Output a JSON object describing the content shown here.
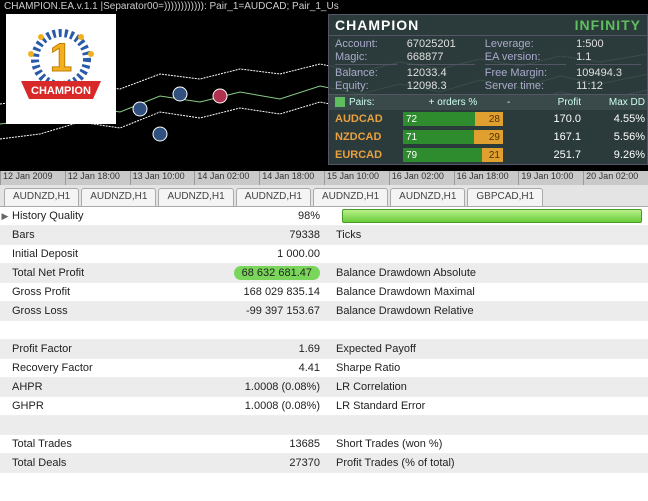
{
  "chart": {
    "title": "CHAMPION.EA.v.1.1 |Separator00=)))))))))))): Pair_1=AUDCAD; Pair_1_Us",
    "x_labels": [
      "12 Jan 2009",
      "12 Jan 18:00",
      "13 Jan 10:00",
      "14 Jan 02:00",
      "14 Jan 18:00",
      "15 Jan 10:00",
      "16 Jan 02:00",
      "16 Jan 18:00",
      "19 Jan 10:00",
      "20 Jan 02:00"
    ]
  },
  "panel": {
    "title": "CHAMPION",
    "brand": "INFINITY",
    "rows": [
      {
        "l1": "Account:",
        "v1": "67025201",
        "l2": "Leverage:",
        "v2": "1:500"
      },
      {
        "l1": "Magic:",
        "v1": "668877",
        "l2": "EA version:",
        "v2": "1.1"
      },
      {
        "l1": "Balance:",
        "v1": "12033.4",
        "l2": "Free Margin:",
        "v2": "109494.3"
      },
      {
        "l1": "Equity:",
        "v1": "12098.3",
        "l2": "Server time:",
        "v2": "11:12"
      }
    ],
    "pairs_header": {
      "c1": "Pairs:",
      "c2": "+     orders %",
      "c3": "-",
      "c4": "Profit",
      "c5": "Max DD"
    },
    "pairs": [
      {
        "name": "AUDCAD",
        "plus": 72,
        "minus": 28,
        "profit": "170.0",
        "dd": "4.55%"
      },
      {
        "name": "NZDCAD",
        "plus": 71,
        "minus": 29,
        "profit": "167.1",
        "dd": "5.56%"
      },
      {
        "name": "EURCAD",
        "plus": 79,
        "minus": 21,
        "profit": "251.7",
        "dd": "9.26%"
      }
    ]
  },
  "tabs": [
    "AUDNZD,H1",
    "AUDNZD,H1",
    "AUDNZD,H1",
    "AUDNZD,H1",
    "AUDNZD,H1",
    "AUDNZD,H1",
    "GBPCAD,H1"
  ],
  "report": [
    {
      "alt": false,
      "label": "History Quality",
      "val": "98%",
      "desc": "__QUALITY_BAR__",
      "arrow": true
    },
    {
      "alt": true,
      "label": "Bars",
      "val": "79338",
      "desc": "Ticks"
    },
    {
      "alt": false,
      "label": "Initial Deposit",
      "val": "1 000.00",
      "desc": ""
    },
    {
      "alt": true,
      "label": "Total Net Profit",
      "val": "68 632 681.47",
      "hl": true,
      "desc": "Balance Drawdown Absolute"
    },
    {
      "alt": false,
      "label": "Gross Profit",
      "val": "168 029 835.14",
      "desc": "Balance Drawdown Maximal"
    },
    {
      "alt": true,
      "label": "Gross Loss",
      "val": "-99 397 153.67",
      "desc": "Balance Drawdown Relative"
    },
    {
      "alt": false,
      "label": "",
      "val": "",
      "desc": ""
    },
    {
      "alt": true,
      "label": "Profit Factor",
      "val": "1.69",
      "desc": "Expected Payoff"
    },
    {
      "alt": false,
      "label": "Recovery Factor",
      "val": "4.41",
      "desc": "Sharpe Ratio"
    },
    {
      "alt": true,
      "label": "AHPR",
      "val": "1.0008 (0.08%)",
      "desc": "LR Correlation"
    },
    {
      "alt": false,
      "label": "GHPR",
      "val": "1.0008 (0.08%)",
      "desc": "LR Standard Error"
    },
    {
      "alt": true,
      "label": "",
      "val": "",
      "desc": ""
    },
    {
      "alt": false,
      "label": "Total Trades",
      "val": "13685",
      "desc": "Short Trades (won %)"
    },
    {
      "alt": true,
      "label": "Total Deals",
      "val": "27370",
      "desc": "Profit Trades (% of total)"
    }
  ],
  "colors": {
    "panel_bg": "#304040",
    "accent": "#5fbf5f",
    "bar_plus": "#2e8b2e",
    "bar_minus": "#e0a030",
    "pair_name": "#e8a040",
    "highlight": "#7ad65a"
  }
}
